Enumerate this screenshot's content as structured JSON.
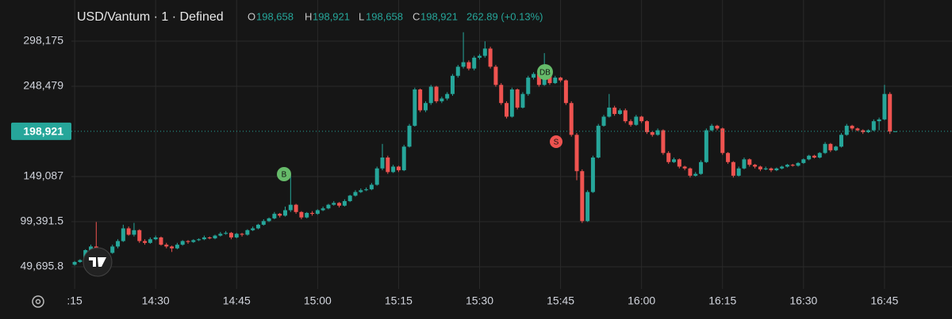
{
  "chart_data": {
    "type": "candlestick",
    "title": "USD/Vantum · 1 · Defined",
    "ohlc_legend": {
      "open_label": "O",
      "open": "198,658",
      "high_label": "H",
      "high": "198,921",
      "low_label": "L",
      "low": "198,658",
      "close_label": "C",
      "close": "198,921",
      "change": "262.89 (+0.13%)"
    },
    "last_price": {
      "value": 198921,
      "label": "198,921"
    },
    "markers": [
      "B",
      "DB",
      "S"
    ],
    "up_color": "#26a69a",
    "down_color": "#ef5350",
    "grid": true,
    "ylim": [
      25283,
      343511
    ],
    "yticks": [
      {
        "value": 49695.8,
        "label": "49,695.8"
      },
      {
        "value": 99391.5,
        "label": "99,391.5"
      },
      {
        "value": 149087,
        "label": "149,087"
      },
      {
        "value": 248479,
        "label": "248,479"
      },
      {
        "value": 298175,
        "label": "298,175"
      }
    ],
    "xlim": [
      -0.6,
      162.5
    ],
    "xticks": [
      {
        "value": 0,
        "label": ":15"
      },
      {
        "value": 15,
        "label": "14:30"
      },
      {
        "value": 30,
        "label": "14:45"
      },
      {
        "value": 45,
        "label": "15:00"
      },
      {
        "value": 60,
        "label": "15:15"
      },
      {
        "value": 75,
        "label": "15:30"
      },
      {
        "value": 90,
        "label": "15:45"
      },
      {
        "value": 105,
        "label": "16:00"
      },
      {
        "value": 120,
        "label": "16:15"
      },
      {
        "value": 135,
        "label": "16:30"
      },
      {
        "value": 150,
        "label": "16:45"
      }
    ],
    "candles": [
      [
        52000,
        56000,
        51000,
        55000
      ],
      [
        55000,
        58000,
        54000,
        57000
      ],
      [
        57000,
        69000,
        56000,
        68000
      ],
      [
        68000,
        74000,
        66000,
        72000
      ],
      [
        72000,
        99000,
        64000,
        66000
      ],
      [
        66000,
        68000,
        60000,
        62000
      ],
      [
        62000,
        66000,
        60000,
        65000
      ],
      [
        65000,
        74000,
        64000,
        72000
      ],
      [
        72000,
        80000,
        70000,
        78000
      ],
      [
        78000,
        96000,
        77000,
        92000
      ],
      [
        92000,
        94000,
        84000,
        85000
      ],
      [
        85000,
        98000,
        83000,
        90000
      ],
      [
        90000,
        91000,
        76000,
        78000
      ],
      [
        78000,
        80000,
        74000,
        76000
      ],
      [
        76000,
        82000,
        75000,
        80000
      ],
      [
        80000,
        84000,
        79000,
        82000
      ],
      [
        82000,
        83000,
        73000,
        74000
      ],
      [
        74000,
        76000,
        70000,
        72000
      ],
      [
        72000,
        73000,
        66000,
        70000
      ],
      [
        70000,
        76000,
        69000,
        74000
      ],
      [
        74000,
        79000,
        73000,
        78000
      ],
      [
        78000,
        79000,
        75000,
        77000
      ],
      [
        77000,
        80000,
        76000,
        79000
      ],
      [
        79000,
        81000,
        78000,
        80000
      ],
      [
        80000,
        84000,
        79000,
        82000
      ],
      [
        82000,
        83000,
        80000,
        81000
      ],
      [
        81000,
        85000,
        80000,
        84000
      ],
      [
        84000,
        88000,
        83000,
        86000
      ],
      [
        86000,
        89000,
        85000,
        87000
      ],
      [
        87000,
        88000,
        80000,
        82000
      ],
      [
        82000,
        87000,
        81000,
        86000
      ],
      [
        86000,
        87000,
        83000,
        85000
      ],
      [
        85000,
        91000,
        84000,
        90000
      ],
      [
        90000,
        94000,
        89000,
        92000
      ],
      [
        92000,
        97000,
        91000,
        96000
      ],
      [
        96000,
        102000,
        95000,
        100000
      ],
      [
        100000,
        104000,
        99000,
        103000
      ],
      [
        103000,
        110000,
        102000,
        108000
      ],
      [
        108000,
        109000,
        104000,
        106000
      ],
      [
        106000,
        116000,
        105000,
        112000
      ],
      [
        112000,
        151000,
        110000,
        118000
      ],
      [
        118000,
        119000,
        108000,
        110000
      ],
      [
        110000,
        111000,
        102000,
        104000
      ],
      [
        104000,
        110000,
        103000,
        109000
      ],
      [
        109000,
        111000,
        106000,
        108000
      ],
      [
        108000,
        113000,
        107000,
        112000
      ],
      [
        112000,
        116000,
        111000,
        114000
      ],
      [
        114000,
        119000,
        113000,
        118000
      ],
      [
        118000,
        122000,
        117000,
        120000
      ],
      [
        120000,
        121000,
        115000,
        117000
      ],
      [
        117000,
        124000,
        116000,
        122000
      ],
      [
        122000,
        129000,
        121000,
        128000
      ],
      [
        128000,
        134000,
        127000,
        132000
      ],
      [
        132000,
        136000,
        131000,
        134000
      ],
      [
        134000,
        137000,
        133000,
        135000
      ],
      [
        135000,
        142000,
        134000,
        140000
      ],
      [
        140000,
        160000,
        139000,
        158000
      ],
      [
        158000,
        185000,
        156000,
        170000
      ],
      [
        170000,
        172000,
        152000,
        154000
      ],
      [
        154000,
        162000,
        153000,
        160000
      ],
      [
        160000,
        161000,
        154000,
        156000
      ],
      [
        156000,
        184000,
        155000,
        182000
      ],
      [
        182000,
        207000,
        181000,
        205000
      ],
      [
        205000,
        247000,
        204000,
        245000
      ],
      [
        245000,
        246000,
        220000,
        222000
      ],
      [
        222000,
        232000,
        220000,
        230000
      ],
      [
        230000,
        250000,
        228000,
        248000
      ],
      [
        248000,
        249000,
        230000,
        232000
      ],
      [
        232000,
        237000,
        230000,
        235000
      ],
      [
        235000,
        242000,
        233000,
        240000
      ],
      [
        240000,
        262000,
        238000,
        260000
      ],
      [
        260000,
        272000,
        258000,
        270000
      ],
      [
        270000,
        308000,
        268000,
        275000
      ],
      [
        275000,
        277000,
        266000,
        268000
      ],
      [
        268000,
        282000,
        266000,
        280000
      ],
      [
        280000,
        284000,
        278000,
        282000
      ],
      [
        282000,
        298000,
        280000,
        290000
      ],
      [
        290000,
        292000,
        268000,
        270000
      ],
      [
        270000,
        272000,
        248000,
        250000
      ],
      [
        250000,
        252000,
        228000,
        230000
      ],
      [
        230000,
        232000,
        213000,
        215000
      ],
      [
        215000,
        247000,
        214000,
        245000
      ],
      [
        245000,
        246000,
        223000,
        225000
      ],
      [
        225000,
        242000,
        224000,
        240000
      ],
      [
        240000,
        260000,
        238000,
        258000
      ],
      [
        258000,
        264000,
        256000,
        262000
      ],
      [
        262000,
        263000,
        248000,
        250000
      ],
      [
        250000,
        285000,
        249000,
        262000
      ],
      [
        262000,
        264000,
        250000,
        252000
      ],
      [
        252000,
        260000,
        251000,
        258000
      ],
      [
        258000,
        259000,
        253000,
        255000
      ],
      [
        255000,
        256000,
        228000,
        230000
      ],
      [
        230000,
        232000,
        193000,
        195000
      ],
      [
        195000,
        197000,
        145000,
        155000
      ],
      [
        155000,
        157000,
        98000,
        100000
      ],
      [
        100000,
        134000,
        99000,
        132000
      ],
      [
        132000,
        172000,
        131000,
        170000
      ],
      [
        170000,
        207000,
        169000,
        205000
      ],
      [
        205000,
        217000,
        204000,
        215000
      ],
      [
        215000,
        240000,
        214000,
        225000
      ],
      [
        225000,
        227000,
        216000,
        218000
      ],
      [
        218000,
        224000,
        217000,
        222000
      ],
      [
        222000,
        224000,
        208000,
        210000
      ],
      [
        210000,
        212000,
        204000,
        206000
      ],
      [
        206000,
        217000,
        205000,
        215000
      ],
      [
        215000,
        216000,
        208000,
        210000
      ],
      [
        210000,
        211000,
        196000,
        198000
      ],
      [
        198000,
        199000,
        193000,
        195000
      ],
      [
        195000,
        202000,
        194000,
        200000
      ],
      [
        200000,
        201000,
        173000,
        175000
      ],
      [
        175000,
        177000,
        163000,
        165000
      ],
      [
        165000,
        170000,
        164000,
        168000
      ],
      [
        168000,
        169000,
        158000,
        160000
      ],
      [
        160000,
        161000,
        156000,
        158000
      ],
      [
        158000,
        159000,
        148000,
        150000
      ],
      [
        150000,
        154000,
        149000,
        152000
      ],
      [
        152000,
        167000,
        151000,
        165000
      ],
      [
        165000,
        202000,
        164000,
        200000
      ],
      [
        200000,
        207000,
        199000,
        205000
      ],
      [
        205000,
        206000,
        200000,
        202000
      ],
      [
        202000,
        203000,
        173000,
        175000
      ],
      [
        175000,
        176000,
        163000,
        165000
      ],
      [
        165000,
        166000,
        148000,
        150000
      ],
      [
        150000,
        160000,
        149000,
        158000
      ],
      [
        158000,
        170000,
        157000,
        168000
      ],
      [
        168000,
        169000,
        160000,
        162000
      ],
      [
        162000,
        163000,
        158000,
        160000
      ],
      [
        160000,
        161000,
        155000,
        157000
      ],
      [
        157000,
        160000,
        156000,
        158000
      ],
      [
        158000,
        159000,
        154000,
        156000
      ],
      [
        156000,
        159000,
        155000,
        158000
      ],
      [
        158000,
        161000,
        157000,
        160000
      ],
      [
        160000,
        163000,
        159000,
        162000
      ],
      [
        162000,
        163000,
        160000,
        161000
      ],
      [
        161000,
        165000,
        160000,
        164000
      ],
      [
        164000,
        169000,
        163000,
        168000
      ],
      [
        168000,
        173000,
        167000,
        172000
      ],
      [
        172000,
        173000,
        169000,
        170000
      ],
      [
        170000,
        176000,
        169000,
        175000
      ],
      [
        175000,
        187000,
        174000,
        185000
      ],
      [
        185000,
        186000,
        176000,
        178000
      ],
      [
        178000,
        183000,
        177000,
        182000
      ],
      [
        182000,
        197000,
        181000,
        195000
      ],
      [
        195000,
        207000,
        194000,
        205000
      ],
      [
        205000,
        206000,
        200000,
        202000
      ],
      [
        202000,
        203000,
        199000,
        200000
      ],
      [
        200000,
        201000,
        196000,
        198000
      ],
      [
        198000,
        201000,
        197000,
        200000
      ],
      [
        200000,
        212000,
        199000,
        210000
      ],
      [
        210000,
        214000,
        200000,
        212000
      ],
      [
        212000,
        250000,
        211000,
        240000
      ],
      [
        240000,
        242000,
        196000,
        198658
      ],
      [
        198658,
        198921,
        198658,
        198921
      ]
    ]
  }
}
